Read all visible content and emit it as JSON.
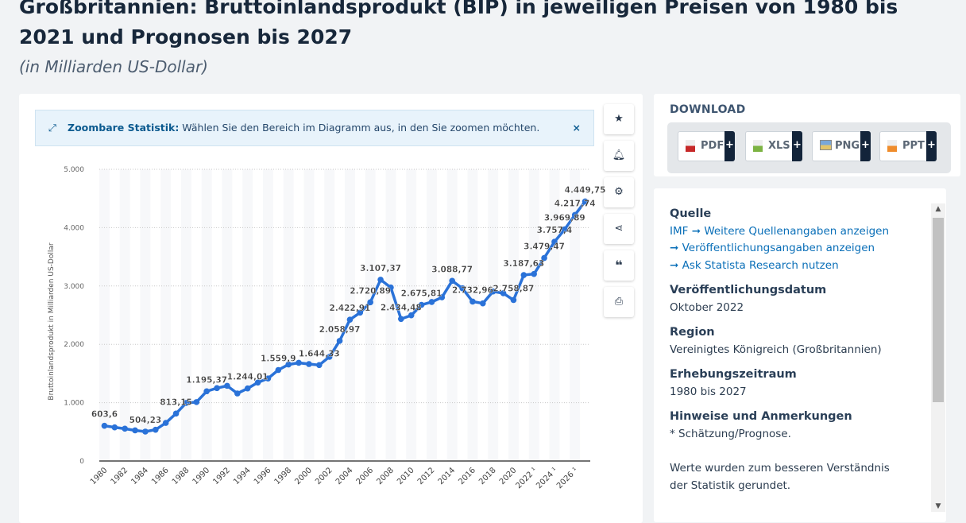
{
  "header": {
    "title": "Großbritannien: Bruttoinlandsprodukt (BIP) in jeweiligen Preisen von 1980 bis 2021 und Prognosen bis 2027",
    "subtitle": "(in Milliarden US-Dollar)"
  },
  "zoom_hint": {
    "bold": "Zoombare Statistik:",
    "text": " Wählen Sie den Bereich im Diagramm aus, in den Sie zoomen möchten.",
    "close": "×"
  },
  "side_buttons": [
    "star-icon",
    "bell-icon",
    "gear-icon",
    "share-icon",
    "quote-icon",
    "print-icon"
  ],
  "download": {
    "heading": "DOWNLOAD",
    "buttons": [
      {
        "label": "PDF",
        "color": "#c62828"
      },
      {
        "label": "XLS",
        "color": "#7cb342"
      },
      {
        "label": "PNG",
        "color": "#4a7fc1"
      },
      {
        "label": "PPT",
        "color": "#ef8c2b"
      }
    ],
    "plus": "+"
  },
  "info": {
    "source_h": "Quelle",
    "source": "IMF",
    "link1": "Weitere Quellenangaben anzeigen",
    "link2": "Veröffentlichungsangaben anzeigen",
    "link3": "Ask Statista Research nutzen",
    "pub_h": "Veröffentlichungsdatum",
    "pub": "Oktober 2022",
    "region_h": "Region",
    "region": "Vereinigtes Königreich (Großbritannien)",
    "period_h": "Erhebungszeitraum",
    "period": "1980 bis 2027",
    "notes_h": "Hinweise und Anmerkungen",
    "notes": "* Schätzung/Prognose.",
    "notes2": "Werte wurden zum besseren Verständnis der Statistik gerundet."
  },
  "chart_data": {
    "type": "line",
    "title": "",
    "xlabel": "",
    "ylabel": "Bruttoinlandsprodukt in Milliarden US-Dollar",
    "ylim": [
      0,
      5000
    ],
    "yticks": [
      "0",
      "1.000",
      "2.000",
      "3.000",
      "4.000",
      "5.000"
    ],
    "x": [
      1980,
      1981,
      1982,
      1983,
      1984,
      1985,
      1986,
      1987,
      1988,
      1989,
      1990,
      1991,
      1992,
      1993,
      1994,
      1995,
      1996,
      1997,
      1998,
      1999,
      2000,
      2001,
      2002,
      2003,
      2004,
      2005,
      2006,
      2007,
      2008,
      2009,
      2010,
      2011,
      2012,
      2013,
      2014,
      2015,
      2016,
      2017,
      2018,
      2019,
      2020,
      2021,
      2022,
      2023,
      2024,
      2025,
      2026,
      2027
    ],
    "values": [
      603.6,
      577,
      554,
      525,
      504.23,
      536,
      653,
      813.15,
      995,
      1010,
      1195.37,
      1249,
      1289,
      1158,
      1244.01,
      1345,
      1415,
      1559.9,
      1654,
      1683,
      1662,
      1644.33,
      1786,
      2058.97,
      2422.91,
      2544,
      2720.89,
      3107.37,
      2974,
      2434.48,
      2497,
      2675.81,
      2725,
      2806,
      3088.77,
      2960,
      2732.96,
      2702,
      2906,
      2875,
      2758.87,
      3187.63,
      3206,
      3479.47,
      3757.4,
      3969.89,
      4217.74,
      4449.75
    ],
    "labels": {
      "1980": "603,6",
      "1984": "504,23",
      "1987": "813,15",
      "1990": "1.195,37",
      "1994": "1.244,01",
      "1997": "1.559,9",
      "2001": "1.644,33",
      "2003": "2.058,97",
      "2004": "2.422,91",
      "2006": "2.720,89",
      "2007": "3.107,37",
      "2009": "2.434,48",
      "2011": "2.675,81",
      "2014": "3.088,77",
      "2016": "2.732,96",
      "2020": "2.758,87",
      "2021": "3.187,63",
      "2023": "3.479,47",
      "2024": "3.757,4",
      "2025": "3.969,89",
      "2026": "4.217,74",
      "2027": "4.449,75"
    },
    "xticks": [
      "1980",
      "1982",
      "1984",
      "1986",
      "1988",
      "1990",
      "1992",
      "1994",
      "1996",
      "1998",
      "2000",
      "2002",
      "2004",
      "2006",
      "2008",
      "2010",
      "2012",
      "2014",
      "2016",
      "2018",
      "2020",
      "2022 ¹",
      "2024 ¹",
      "2026 ¹"
    ],
    "color": "#2a72d8",
    "grid": true
  }
}
